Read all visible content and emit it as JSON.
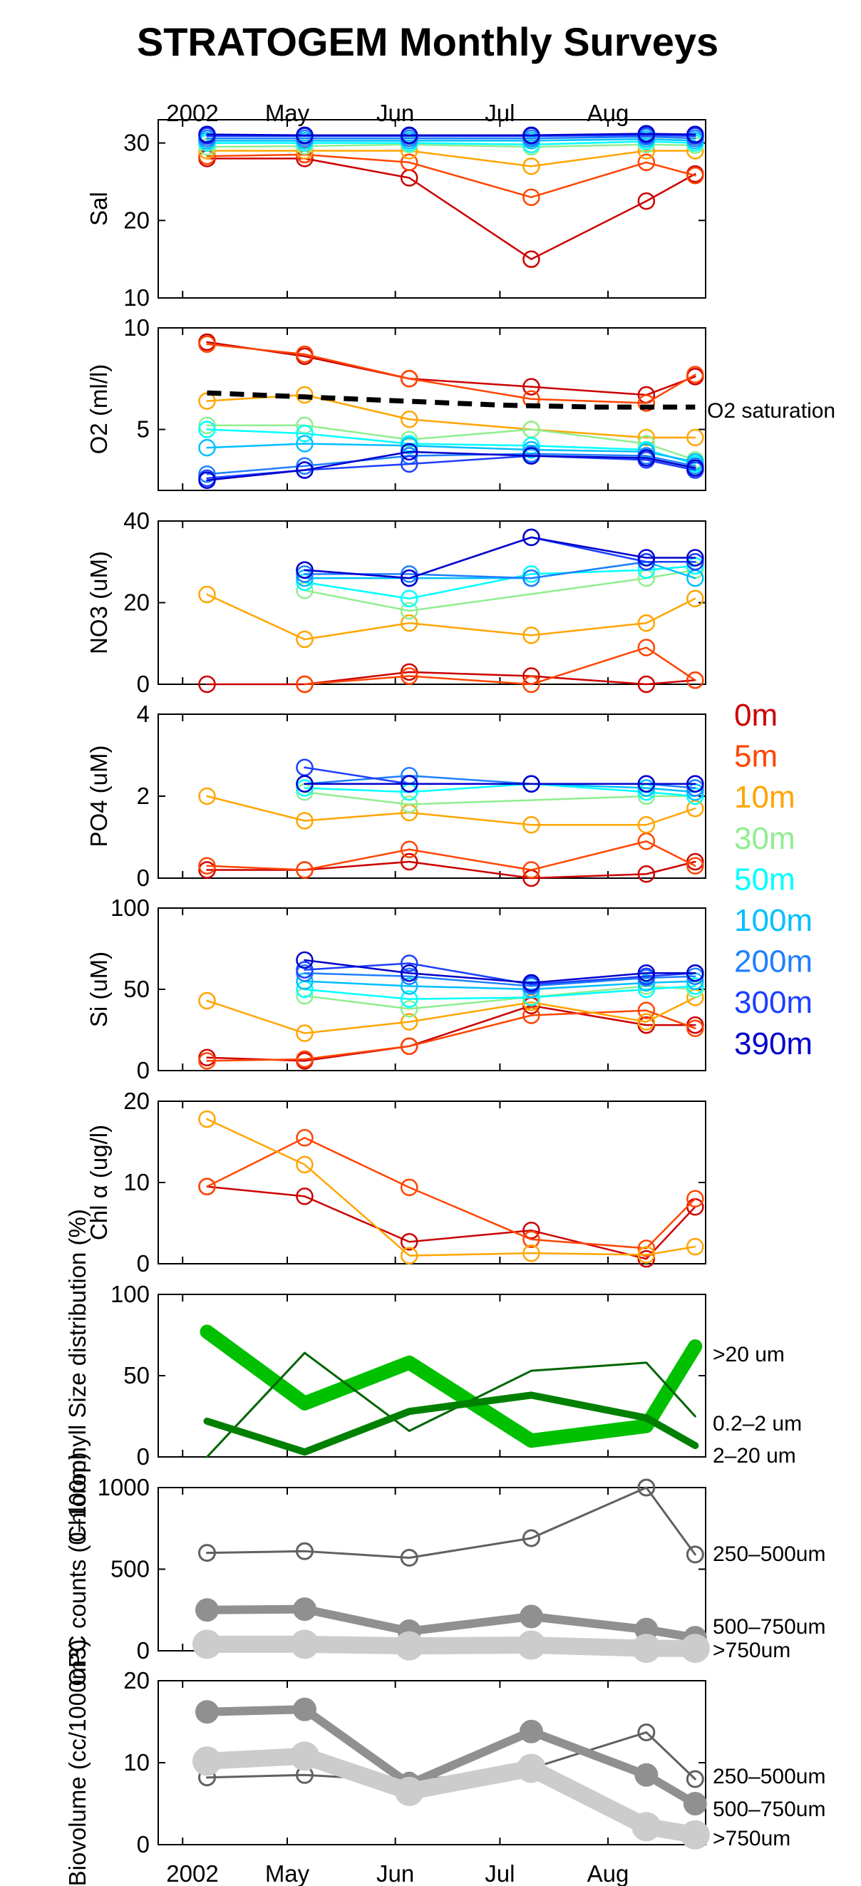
{
  "title": "STRATOGEM Monthly Surveys",
  "x_tick_labels": [
    "2002",
    "May",
    "Jun",
    "Jul",
    "Aug"
  ],
  "depth_legend": [
    {
      "label": "0m",
      "color": "#cc0000"
    },
    {
      "label": "5m",
      "color": "#ff4500"
    },
    {
      "label": "10m",
      "color": "#ffa500"
    },
    {
      "label": "30m",
      "color": "#90ee90"
    },
    {
      "label": "50m",
      "color": "#00ffff"
    },
    {
      "label": "100m",
      "color": "#00bfff"
    },
    {
      "label": "200m",
      "color": "#1e7fff"
    },
    {
      "label": "300m",
      "color": "#1c3fff"
    },
    {
      "label": "390m",
      "color": "#0000cc"
    }
  ],
  "chart_data": [
    {
      "type": "line",
      "ylabel": "Sal",
      "ylim": [
        10,
        33
      ],
      "yticks": [
        10,
        20,
        30
      ],
      "x": [
        "2002-04-08",
        "2002-05-06",
        "2002-06-05",
        "2002-07-10",
        "2002-08-12",
        "2002-08-26"
      ],
      "series": [
        {
          "name": "0m",
          "values": [
            28.0,
            28.0,
            25.5,
            15.0,
            22.5,
            26.0
          ]
        },
        {
          "name": "5m",
          "values": [
            28.3,
            28.5,
            27.5,
            23.0,
            27.5,
            25.8
          ]
        },
        {
          "name": "10m",
          "values": [
            29.0,
            29.0,
            29.0,
            27.0,
            29.0,
            29.0
          ]
        },
        {
          "name": "30m",
          "values": [
            29.5,
            29.6,
            29.8,
            29.5,
            29.8,
            29.7
          ]
        },
        {
          "name": "50m",
          "values": [
            30.0,
            30.0,
            30.0,
            29.8,
            30.2,
            30.0
          ]
        },
        {
          "name": "100m",
          "values": [
            30.3,
            30.3,
            30.3,
            30.3,
            30.5,
            30.3
          ]
        },
        {
          "name": "200m",
          "values": [
            30.6,
            30.6,
            30.6,
            30.6,
            30.8,
            30.6
          ]
        },
        {
          "name": "300m",
          "values": [
            30.9,
            30.9,
            30.9,
            30.9,
            31.0,
            30.9
          ]
        },
        {
          "name": "390m",
          "values": [
            31.1,
            31.0,
            31.0,
            31.0,
            31.2,
            31.1
          ]
        }
      ]
    },
    {
      "type": "line",
      "ylabel": "O2 (ml/l)",
      "ylim": [
        2,
        10
      ],
      "yticks": [
        5,
        10
      ],
      "x": [
        "2002-04-08",
        "2002-05-06",
        "2002-06-05",
        "2002-07-10",
        "2002-08-12",
        "2002-08-26"
      ],
      "series": [
        {
          "name": "0m",
          "values": [
            9.3,
            8.6,
            7.5,
            7.1,
            6.7,
            7.6
          ]
        },
        {
          "name": "5m",
          "values": [
            9.2,
            8.7,
            7.5,
            6.5,
            6.3,
            7.7
          ]
        },
        {
          "name": "10m",
          "values": [
            6.4,
            6.7,
            5.5,
            5.0,
            4.6,
            4.6
          ]
        },
        {
          "name": "30m",
          "values": [
            5.2,
            5.2,
            4.5,
            5.0,
            4.3,
            3.5
          ]
        },
        {
          "name": "50m",
          "values": [
            5.0,
            4.8,
            4.3,
            4.2,
            4.0,
            3.3
          ]
        },
        {
          "name": "100m",
          "values": [
            4.1,
            4.3,
            4.2,
            4.0,
            3.9,
            3.4
          ]
        },
        {
          "name": "200m",
          "values": [
            2.8,
            3.2,
            3.7,
            3.8,
            3.7,
            3.2
          ]
        },
        {
          "name": "300m",
          "values": [
            2.6,
            3.0,
            3.3,
            3.7,
            3.5,
            3.0
          ]
        },
        {
          "name": "390m",
          "values": [
            2.5,
            3.0,
            3.9,
            3.7,
            3.6,
            3.1
          ]
        }
      ],
      "reference_line": {
        "name": "O2 saturation",
        "values": [
          6.8,
          6.6,
          6.4,
          6.2,
          6.1,
          6.1
        ]
      }
    },
    {
      "type": "line",
      "ylabel": "NO3 (uM)",
      "ylim": [
        0,
        40
      ],
      "yticks": [
        0,
        20,
        40
      ],
      "x": [
        "2002-04-08",
        "2002-05-06",
        "2002-06-05",
        "2002-07-10",
        "2002-08-12",
        "2002-08-26"
      ],
      "series": [
        {
          "name": "0m",
          "values": [
            0,
            0,
            3,
            2,
            0,
            1
          ]
        },
        {
          "name": "5m",
          "values": [
            null,
            0,
            2,
            0,
            9,
            1
          ]
        },
        {
          "name": "10m",
          "values": [
            22,
            11,
            15,
            12,
            15,
            21
          ]
        },
        {
          "name": "30m",
          "values": [
            null,
            23,
            18,
            null,
            26,
            28
          ]
        },
        {
          "name": "50m",
          "values": [
            null,
            25,
            21,
            27,
            28,
            29
          ]
        },
        {
          "name": "100m",
          "values": [
            null,
            26,
            26,
            26,
            30,
            26
          ]
        },
        {
          "name": "200m",
          "values": [
            null,
            27,
            27,
            26,
            30,
            30
          ]
        },
        {
          "name": "300m",
          "values": [
            null,
            28,
            26,
            36,
            30,
            30
          ]
        },
        {
          "name": "390m",
          "values": [
            null,
            28,
            26,
            36,
            31,
            31
          ]
        }
      ]
    },
    {
      "type": "line",
      "ylabel": "PO4 (uM)",
      "ylim": [
        0,
        4
      ],
      "yticks": [
        0,
        2,
        4
      ],
      "x": [
        "2002-04-08",
        "2002-05-06",
        "2002-06-05",
        "2002-07-10",
        "2002-08-12",
        "2002-08-26"
      ],
      "series": [
        {
          "name": "0m",
          "values": [
            0.2,
            0.2,
            0.4,
            0.0,
            0.1,
            0.4
          ]
        },
        {
          "name": "5m",
          "values": [
            0.3,
            0.2,
            0.7,
            0.2,
            0.9,
            0.3
          ]
        },
        {
          "name": "10m",
          "values": [
            2.0,
            1.4,
            1.6,
            1.3,
            1.3,
            1.7
          ]
        },
        {
          "name": "30m",
          "values": [
            null,
            2.1,
            1.8,
            null,
            2.0,
            2.0
          ]
        },
        {
          "name": "50m",
          "values": [
            null,
            2.2,
            2.1,
            2.3,
            2.1,
            2.0
          ]
        },
        {
          "name": "100m",
          "values": [
            null,
            2.3,
            2.3,
            2.3,
            2.2,
            2.1
          ]
        },
        {
          "name": "200m",
          "values": [
            null,
            2.3,
            2.5,
            2.3,
            2.3,
            2.2
          ]
        },
        {
          "name": "300m",
          "values": [
            null,
            2.7,
            2.3,
            2.3,
            2.3,
            2.3
          ]
        },
        {
          "name": "390m",
          "values": [
            null,
            2.3,
            2.3,
            2.3,
            2.3,
            2.3
          ]
        }
      ]
    },
    {
      "type": "line",
      "ylabel": "Si (uM)",
      "ylim": [
        0,
        100
      ],
      "yticks": [
        0,
        50,
        100
      ],
      "x": [
        "2002-04-08",
        "2002-05-06",
        "2002-06-05",
        "2002-07-10",
        "2002-08-12",
        "2002-08-26"
      ],
      "series": [
        {
          "name": "0m",
          "values": [
            8,
            6,
            15,
            40,
            28,
            28
          ]
        },
        {
          "name": "5m",
          "values": [
            6,
            7,
            15,
            34,
            37,
            26
          ]
        },
        {
          "name": "10m",
          "values": [
            43,
            23,
            30,
            42,
            30,
            45
          ]
        },
        {
          "name": "30m",
          "values": [
            null,
            46,
            38,
            null,
            52,
            50
          ]
        },
        {
          "name": "50m",
          "values": [
            null,
            50,
            44,
            45,
            50,
            52
          ]
        },
        {
          "name": "100m",
          "values": [
            null,
            55,
            52,
            50,
            54,
            55
          ]
        },
        {
          "name": "200m",
          "values": [
            null,
            60,
            58,
            52,
            57,
            58
          ]
        },
        {
          "name": "300m",
          "values": [
            null,
            62,
            66,
            53,
            58,
            60
          ]
        },
        {
          "name": "390m",
          "values": [
            null,
            68,
            60,
            54,
            60,
            60
          ]
        }
      ]
    },
    {
      "type": "line",
      "ylabel": "Chl α (ug/l)",
      "ylim": [
        0,
        20
      ],
      "yticks": [
        0,
        10,
        20
      ],
      "x": [
        "2002-04-08",
        "2002-05-06",
        "2002-06-05",
        "2002-07-10",
        "2002-08-12",
        "2002-08-26"
      ],
      "series": [
        {
          "name": "0m",
          "values": [
            9.5,
            8.3,
            2.7,
            4.1,
            0.6,
            7.0
          ]
        },
        {
          "name": "5m",
          "values": [
            9.5,
            15.5,
            9.4,
            3.0,
            1.9,
            8.0
          ]
        },
        {
          "name": "10m",
          "values": [
            17.8,
            12.2,
            1.0,
            1.3,
            1.1,
            2.1
          ]
        }
      ]
    },
    {
      "type": "line",
      "ylabel": "Chlorophyll Size distribution (%)",
      "ylim": [
        0,
        100
      ],
      "yticks": [
        0,
        50,
        100
      ],
      "x": [
        "2002-04-08",
        "2002-05-06",
        "2002-06-05",
        "2002-07-10",
        "2002-08-12",
        "2002-08-26"
      ],
      "series": [
        {
          "name": ">20 um",
          "values": [
            77,
            33,
            58,
            10,
            19,
            68
          ]
        },
        {
          "name": "0.2–2 um",
          "values": [
            0,
            64,
            16,
            53,
            58,
            25
          ]
        },
        {
          "name": "2–20 um",
          "values": [
            22,
            3,
            28,
            38,
            24,
            7
          ]
        }
      ]
    },
    {
      "type": "line",
      "ylabel": "OPC counts (0–100m)",
      "ylim": [
        0,
        1000
      ],
      "yticks": [
        0,
        500,
        1000
      ],
      "x": [
        "2002-04-08",
        "2002-05-06",
        "2002-06-05",
        "2002-07-10",
        "2002-08-12",
        "2002-08-26"
      ],
      "series": [
        {
          "name": "250–500um",
          "values": [
            600,
            610,
            570,
            690,
            1000,
            590
          ]
        },
        {
          "name": "500–750um",
          "values": [
            250,
            255,
            120,
            210,
            130,
            80
          ]
        },
        {
          "name": ">750um",
          "values": [
            40,
            40,
            30,
            35,
            15,
            15
          ]
        }
      ]
    },
    {
      "type": "line",
      "ylabel": "Biovolume (cc/1000m3)",
      "ylim": [
        0,
        20
      ],
      "yticks": [
        0,
        10,
        20
      ],
      "x": [
        "2002-04-08",
        "2002-05-06",
        "2002-06-05",
        "2002-07-10",
        "2002-08-12",
        "2002-08-26"
      ],
      "series": [
        {
          "name": "250–500um",
          "values": [
            8.2,
            8.5,
            7.8,
            9.3,
            13.7,
            8.0
          ]
        },
        {
          "name": "500–750um",
          "values": [
            16.2,
            16.5,
            7.4,
            13.8,
            8.5,
            5.0
          ]
        },
        {
          "name": ">750um",
          "values": [
            10.2,
            10.8,
            6.5,
            9.3,
            2.2,
            1.2
          ]
        }
      ]
    }
  ],
  "colors": {
    "sat_line": "#000000",
    "chl_gt20": "#00c000",
    "chl_02_2": "#006400",
    "chl_2_20": "#008000",
    "gray_dark": "#606060",
    "gray_mid": "#909090",
    "gray_light": "#cccccc"
  }
}
